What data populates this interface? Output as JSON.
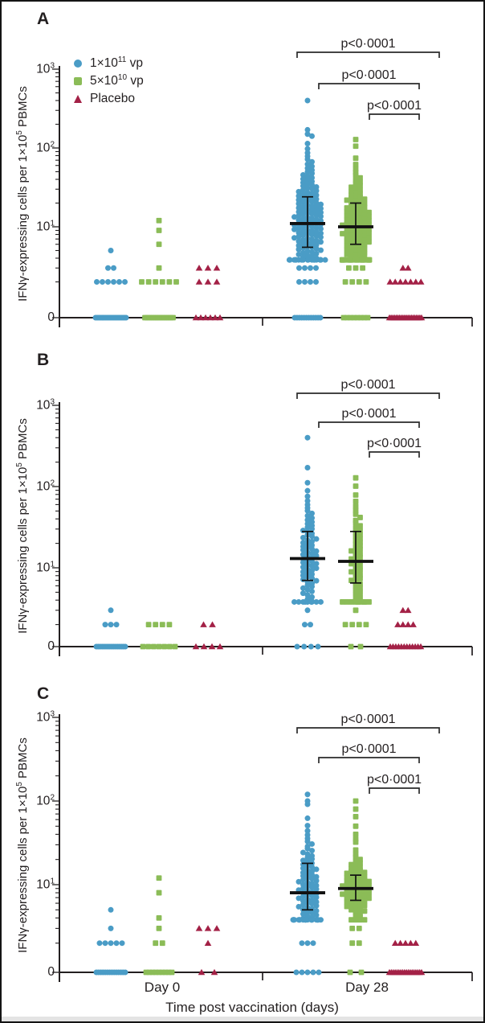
{
  "figure": {
    "panels": [
      {
        "letter": "A"
      },
      {
        "letter": "B"
      },
      {
        "letter": "C"
      }
    ],
    "colors": {
      "high_dose": "#4a9cc6",
      "low_dose": "#8bbc57",
      "placebo": "#a32146",
      "axis": "#231f20",
      "stat_bar": "#111111"
    },
    "legend": {
      "items": [
        {
          "marker": "circle-icon",
          "base": "1×10",
          "sup": "11",
          "suffix": " vp"
        },
        {
          "marker": "square-icon",
          "base": "5×10",
          "sup": "10",
          "suffix": " vp"
        },
        {
          "marker": "triangle-icon",
          "base": "Placebo",
          "sup": "",
          "suffix": ""
        }
      ]
    },
    "y_axis": {
      "label_base": "IFNγ-expressing cells per 1×10",
      "label_sup": "5",
      "label_suffix": " PBMCs",
      "tick_labels": [
        {
          "base": "10",
          "sup": "3",
          "value": 1000
        },
        {
          "base": "10",
          "sup": "2",
          "value": 100
        },
        {
          "base": "10",
          "sup": "1",
          "value": 10
        },
        {
          "base": "0",
          "sup": "",
          "value": 0
        }
      ]
    },
    "x_axis": {
      "tick_labels": [
        "Day 0",
        "Day 28"
      ],
      "title": "Time post vaccination (days)"
    }
  },
  "chart_data": [
    {
      "panel": "A",
      "type": "scatter",
      "subtype": "beeswarm-log",
      "ylabel": "IFNγ-expressing cells per 1×10⁵ PBMCs",
      "xlabel": "Time post vaccination (days)",
      "yscale": "log with zero baseline",
      "ylim": [
        0,
        1000
      ],
      "ytick_values": [
        1000,
        100,
        10,
        0
      ],
      "groups": [
        "1×10¹¹ vp",
        "5×10¹⁰ vp",
        "Placebo"
      ],
      "timepoints": [
        "Day 0",
        "Day 28"
      ],
      "clusters": [
        {
          "group": 0,
          "time": 0,
          "zeros": 20,
          "zeros_w": 38,
          "points": [
            5,
            3,
            3,
            2,
            2,
            2,
            2,
            2,
            2
          ]
        },
        {
          "group": 1,
          "time": 0,
          "zeros": 14,
          "zeros_w": 35,
          "points": [
            12,
            9,
            6,
            3,
            2,
            2,
            2,
            2,
            2,
            2
          ]
        },
        {
          "group": 2,
          "time": 0,
          "zeros": 6,
          "zeros_w": 30,
          "points": [
            3,
            3,
            3,
            2,
            2,
            2
          ]
        },
        {
          "group": 0,
          "time": 1,
          "zeros": 12,
          "zeros_w": 32,
          "points": [
            3,
            3,
            3,
            3,
            2,
            2,
            2,
            2
          ],
          "swarm": {
            "n": 150,
            "max": 150,
            "extra": [
              400,
              170
            ]
          },
          "stats": {
            "median": 11,
            "q1": 5.5,
            "q3": 24
          }
        },
        {
          "group": 1,
          "time": 1,
          "zeros": 8,
          "zeros_w": 30,
          "points": [
            3,
            3,
            3,
            2,
            2,
            2,
            2
          ],
          "swarm": {
            "n": 118,
            "max": 128,
            "extra": [
              128
            ]
          },
          "stats": {
            "median": 10,
            "q1": 6,
            "q3": 20
          }
        },
        {
          "group": 2,
          "time": 1,
          "zeros": 20,
          "zeros_w": 40,
          "points": [
            3,
            3,
            2,
            2,
            2,
            2,
            2,
            2,
            2
          ]
        }
      ],
      "significance": [
        {
          "label": "p<0·0001"
        },
        {
          "label": "p<0·0001"
        },
        {
          "label": "p<0·0001"
        }
      ]
    },
    {
      "panel": "B",
      "type": "scatter",
      "subtype": "beeswarm-log",
      "ylabel": "IFNγ-expressing cells per 1×10⁵ PBMCs",
      "xlabel": "Time post vaccination (days)",
      "yscale": "log with zero baseline",
      "ylim": [
        0,
        1000
      ],
      "ytick_values": [
        1000,
        100,
        10,
        0
      ],
      "groups": [
        "1×10¹¹ vp",
        "5×10¹⁰ vp",
        "Placebo"
      ],
      "timepoints": [
        "Day 0",
        "Day 28"
      ],
      "clusters": [
        {
          "group": 0,
          "time": 0,
          "zeros": 16,
          "zeros_w": 36,
          "points": [
            3,
            2,
            2,
            2
          ]
        },
        {
          "group": 1,
          "time": 0,
          "zeros": 7,
          "zeros_w": 40,
          "points": [
            2,
            2,
            2,
            2
          ]
        },
        {
          "group": 2,
          "time": 0,
          "zeros": 4,
          "zeros_w": 30,
          "points": [
            2,
            2
          ]
        },
        {
          "group": 0,
          "time": 1,
          "zeros": 4,
          "zeros_w": 26,
          "points": [
            3,
            2,
            2
          ],
          "swarm": {
            "n": 80,
            "max": 180,
            "extra": [
              400
            ]
          },
          "stats": {
            "median": 13,
            "q1": 7,
            "q3": 28
          }
        },
        {
          "group": 1,
          "time": 1,
          "zeros": 2,
          "zeros_w": 12,
          "points": [
            3,
            2,
            2,
            2,
            2
          ],
          "swarm": {
            "n": 60,
            "max": 128,
            "extra": []
          },
          "stats": {
            "median": 12,
            "q1": 6.5,
            "q3": 28
          }
        },
        {
          "group": 2,
          "time": 1,
          "zeros": 12,
          "zeros_w": 38,
          "points": [
            3,
            3,
            2,
            2,
            2,
            2
          ]
        }
      ],
      "significance": [
        {
          "label": "p<0·0001"
        },
        {
          "label": "p<0·0001"
        },
        {
          "label": "p<0·0001"
        }
      ]
    },
    {
      "panel": "C",
      "type": "scatter",
      "subtype": "beeswarm-log",
      "ylabel": "IFNγ-expressing cells per 1×10⁵ PBMCs",
      "xlabel": "Time post vaccination (days)",
      "yscale": "log with zero baseline",
      "ylim": [
        0,
        1000
      ],
      "ytick_values": [
        1000,
        100,
        10,
        0
      ],
      "groups": [
        "1×10¹¹ vp",
        "5×10¹⁰ vp",
        "Placebo"
      ],
      "timepoints": [
        "Day 0",
        "Day 28"
      ],
      "clusters": [
        {
          "group": 0,
          "time": 0,
          "zeros": 14,
          "zeros_w": 36,
          "points": [
            5,
            3,
            2,
            2,
            2,
            2,
            2
          ]
        },
        {
          "group": 1,
          "time": 0,
          "zeros": 9,
          "zeros_w": 32,
          "points": [
            12,
            8,
            4,
            3,
            2,
            2
          ]
        },
        {
          "group": 2,
          "time": 0,
          "zeros": 2,
          "zeros_w": 16,
          "points": [
            3,
            3,
            3,
            2
          ]
        },
        {
          "group": 0,
          "time": 1,
          "zeros": 5,
          "zeros_w": 28,
          "points": [
            2,
            2,
            2
          ],
          "swarm": {
            "n": 95,
            "max": 120,
            "extra": [
              120,
              100
            ]
          },
          "stats": {
            "median": 8,
            "q1": 5,
            "q3": 18
          }
        },
        {
          "group": 1,
          "time": 1,
          "zeros": 2,
          "zeros_w": 14,
          "points": [
            3,
            3,
            2,
            2
          ],
          "swarm": {
            "n": 75,
            "max": 110,
            "extra": [
              100,
              80,
              65,
              50,
              40,
              35
            ]
          },
          "stats": {
            "median": 9,
            "q1": 6.5,
            "q3": 13
          }
        },
        {
          "group": 2,
          "time": 1,
          "zeros": 18,
          "zeros_w": 40,
          "points": [
            2,
            2,
            2,
            2,
            2
          ]
        }
      ],
      "significance": [
        {
          "label": "p<0·0001"
        },
        {
          "label": "p<0·0001"
        },
        {
          "label": "p<0·0001"
        }
      ]
    }
  ]
}
